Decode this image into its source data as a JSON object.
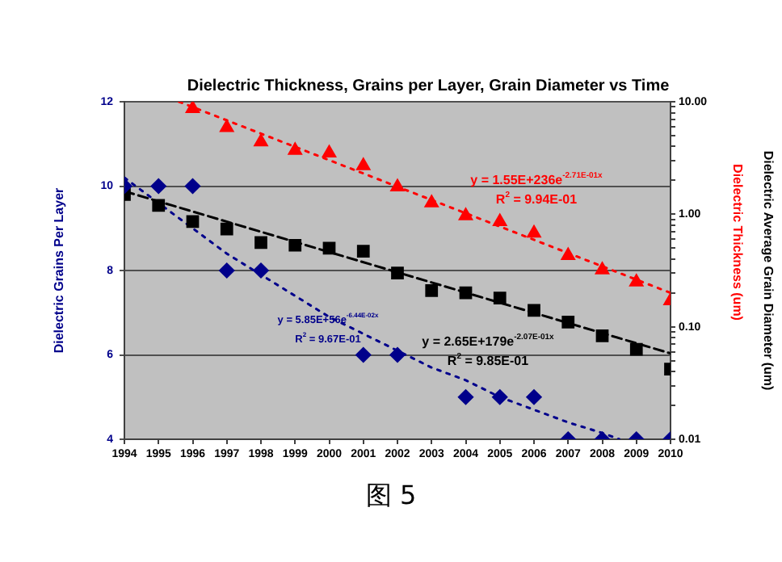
{
  "chart_data": {
    "type": "scatter",
    "title": "Dielectric Thickness, Grains per Layer, Grain Diameter vs Time",
    "ylabel": "Dielectric Grains Per Layer",
    "y2label": "Dielectric Average Grain Diameter (um)",
    "xlim": [
      1994,
      2010
    ],
    "xticks": [
      1994,
      1995,
      1996,
      1997,
      1998,
      1999,
      2000,
      2001,
      2002,
      2003,
      2004,
      2005,
      2006,
      2007,
      2008,
      2009,
      2010
    ],
    "ylim": [
      4,
      12
    ],
    "yticks": [
      4,
      6,
      8,
      10,
      12
    ],
    "y2lim": [
      0.01,
      10
    ],
    "y2ticks": [
      {
        "value": 0.01,
        "label": "0.01"
      },
      {
        "value": 0.02,
        "label": null
      },
      {
        "value": 0.03,
        "label": null
      },
      {
        "value": 0.04,
        "label": null
      },
      {
        "value": 0.05,
        "label": null
      },
      {
        "value": 0.06,
        "label": null
      },
      {
        "value": 0.07,
        "label": null
      },
      {
        "value": 0.08,
        "label": null
      },
      {
        "value": 0.09,
        "label": null
      },
      {
        "value": 0.1,
        "label": "0.10"
      },
      {
        "value": 0.2,
        "label": null
      },
      {
        "value": 0.3,
        "label": null
      },
      {
        "value": 0.4,
        "label": null
      },
      {
        "value": 0.5,
        "label": null
      },
      {
        "value": 0.6,
        "label": null
      },
      {
        "value": 0.7,
        "label": null
      },
      {
        "value": 0.8,
        "label": null
      },
      {
        "value": 0.9,
        "label": null
      },
      {
        "value": 1,
        "label": "1.00"
      },
      {
        "value": 2,
        "label": null
      },
      {
        "value": 3,
        "label": null
      },
      {
        "value": 4,
        "label": null
      },
      {
        "value": 5,
        "label": null
      },
      {
        "value": 6,
        "label": null
      },
      {
        "value": 7,
        "label": null
      },
      {
        "value": 8,
        "label": null
      },
      {
        "value": 9,
        "label": null
      },
      {
        "value": 10,
        "label": "10.00"
      }
    ],
    "log": "y2",
    "grid": "y",
    "legend": false,
    "series": [
      {
        "type": "scatter",
        "color": "#00008b",
        "marker": "diamond",
        "axis": "y",
        "x": [
          1994,
          1995,
          1996,
          1997,
          1998,
          2001,
          2002,
          2004,
          2005,
          2006,
          2007,
          2008,
          2009,
          2010
        ],
        "values": [
          10,
          10,
          10,
          8,
          8,
          6,
          6,
          5,
          5,
          5,
          4,
          4,
          4,
          4
        ]
      },
      {
        "type": "line",
        "color": "#00008b",
        "marker": "none",
        "line_style": "dotted",
        "axis": "y",
        "x": [
          1994,
          1995,
          1996,
          1997,
          1998,
          1999,
          2000,
          2001,
          2002,
          2003,
          2004,
          2005,
          2006,
          2007,
          2008,
          2008.5
        ],
        "values": [
          10.2,
          9.6,
          9.0,
          8.4,
          7.9,
          7.4,
          6.9,
          6.5,
          6.1,
          5.7,
          5.4,
          5.0,
          4.7,
          4.4,
          4.15,
          4.0
        ]
      },
      {
        "type": "scatter",
        "color": "#000000",
        "marker": "square",
        "axis": "y2",
        "x": [
          1994,
          1995,
          1996,
          1997,
          1998,
          1999,
          2000,
          2001,
          2002,
          2003,
          2004,
          2005,
          2006,
          2007,
          2008,
          2009,
          2010
        ],
        "values": [
          1.5,
          1.2,
          0.86,
          0.74,
          0.56,
          0.53,
          0.5,
          0.47,
          0.3,
          0.21,
          0.2,
          0.18,
          0.14,
          0.11,
          0.083,
          0.063,
          0.042
        ]
      },
      {
        "type": "line",
        "color": "#000000",
        "marker": "none",
        "line_style": "dashed",
        "axis": "y2",
        "x": [
          1994,
          2010
        ],
        "values": [
          1.6,
          0.058
        ]
      },
      {
        "type": "scatter",
        "color": "#ff0000",
        "marker": "triangle",
        "axis": "y2",
        "x": [
          1996,
          1997,
          1998,
          1999,
          2000,
          2001,
          2002,
          2003,
          2004,
          2005,
          2006,
          2007,
          2008,
          2009,
          2010
        ],
        "values": [
          8.7,
          5.9,
          4.4,
          3.7,
          3.5,
          2.7,
          1.75,
          1.26,
          0.97,
          0.86,
          0.68,
          0.43,
          0.32,
          0.25,
          0.17
        ]
      },
      {
        "type": "line",
        "color": "#ff0000",
        "marker": "none",
        "line_style": "dotted",
        "axis": "y2",
        "x": [
          1995.6,
          2010
        ],
        "values": [
          10,
          0.2
        ]
      }
    ],
    "annotations": [
      "y = 1.55E+236e$^{-2.71E-01x}$",
      "R$^{2}$ = 9.94E-01",
      "y = 2.65E+179e$^{-2.07E-01x}$",
      "R$^{2}$ = 9.85E-01",
      "y = 5.85E+56e$^{-6.44E-02x}$",
      "R$^{2}$ = 9.67E-01",
      "Dielectric Thickness (um)",
      "图 5"
    ]
  }
}
